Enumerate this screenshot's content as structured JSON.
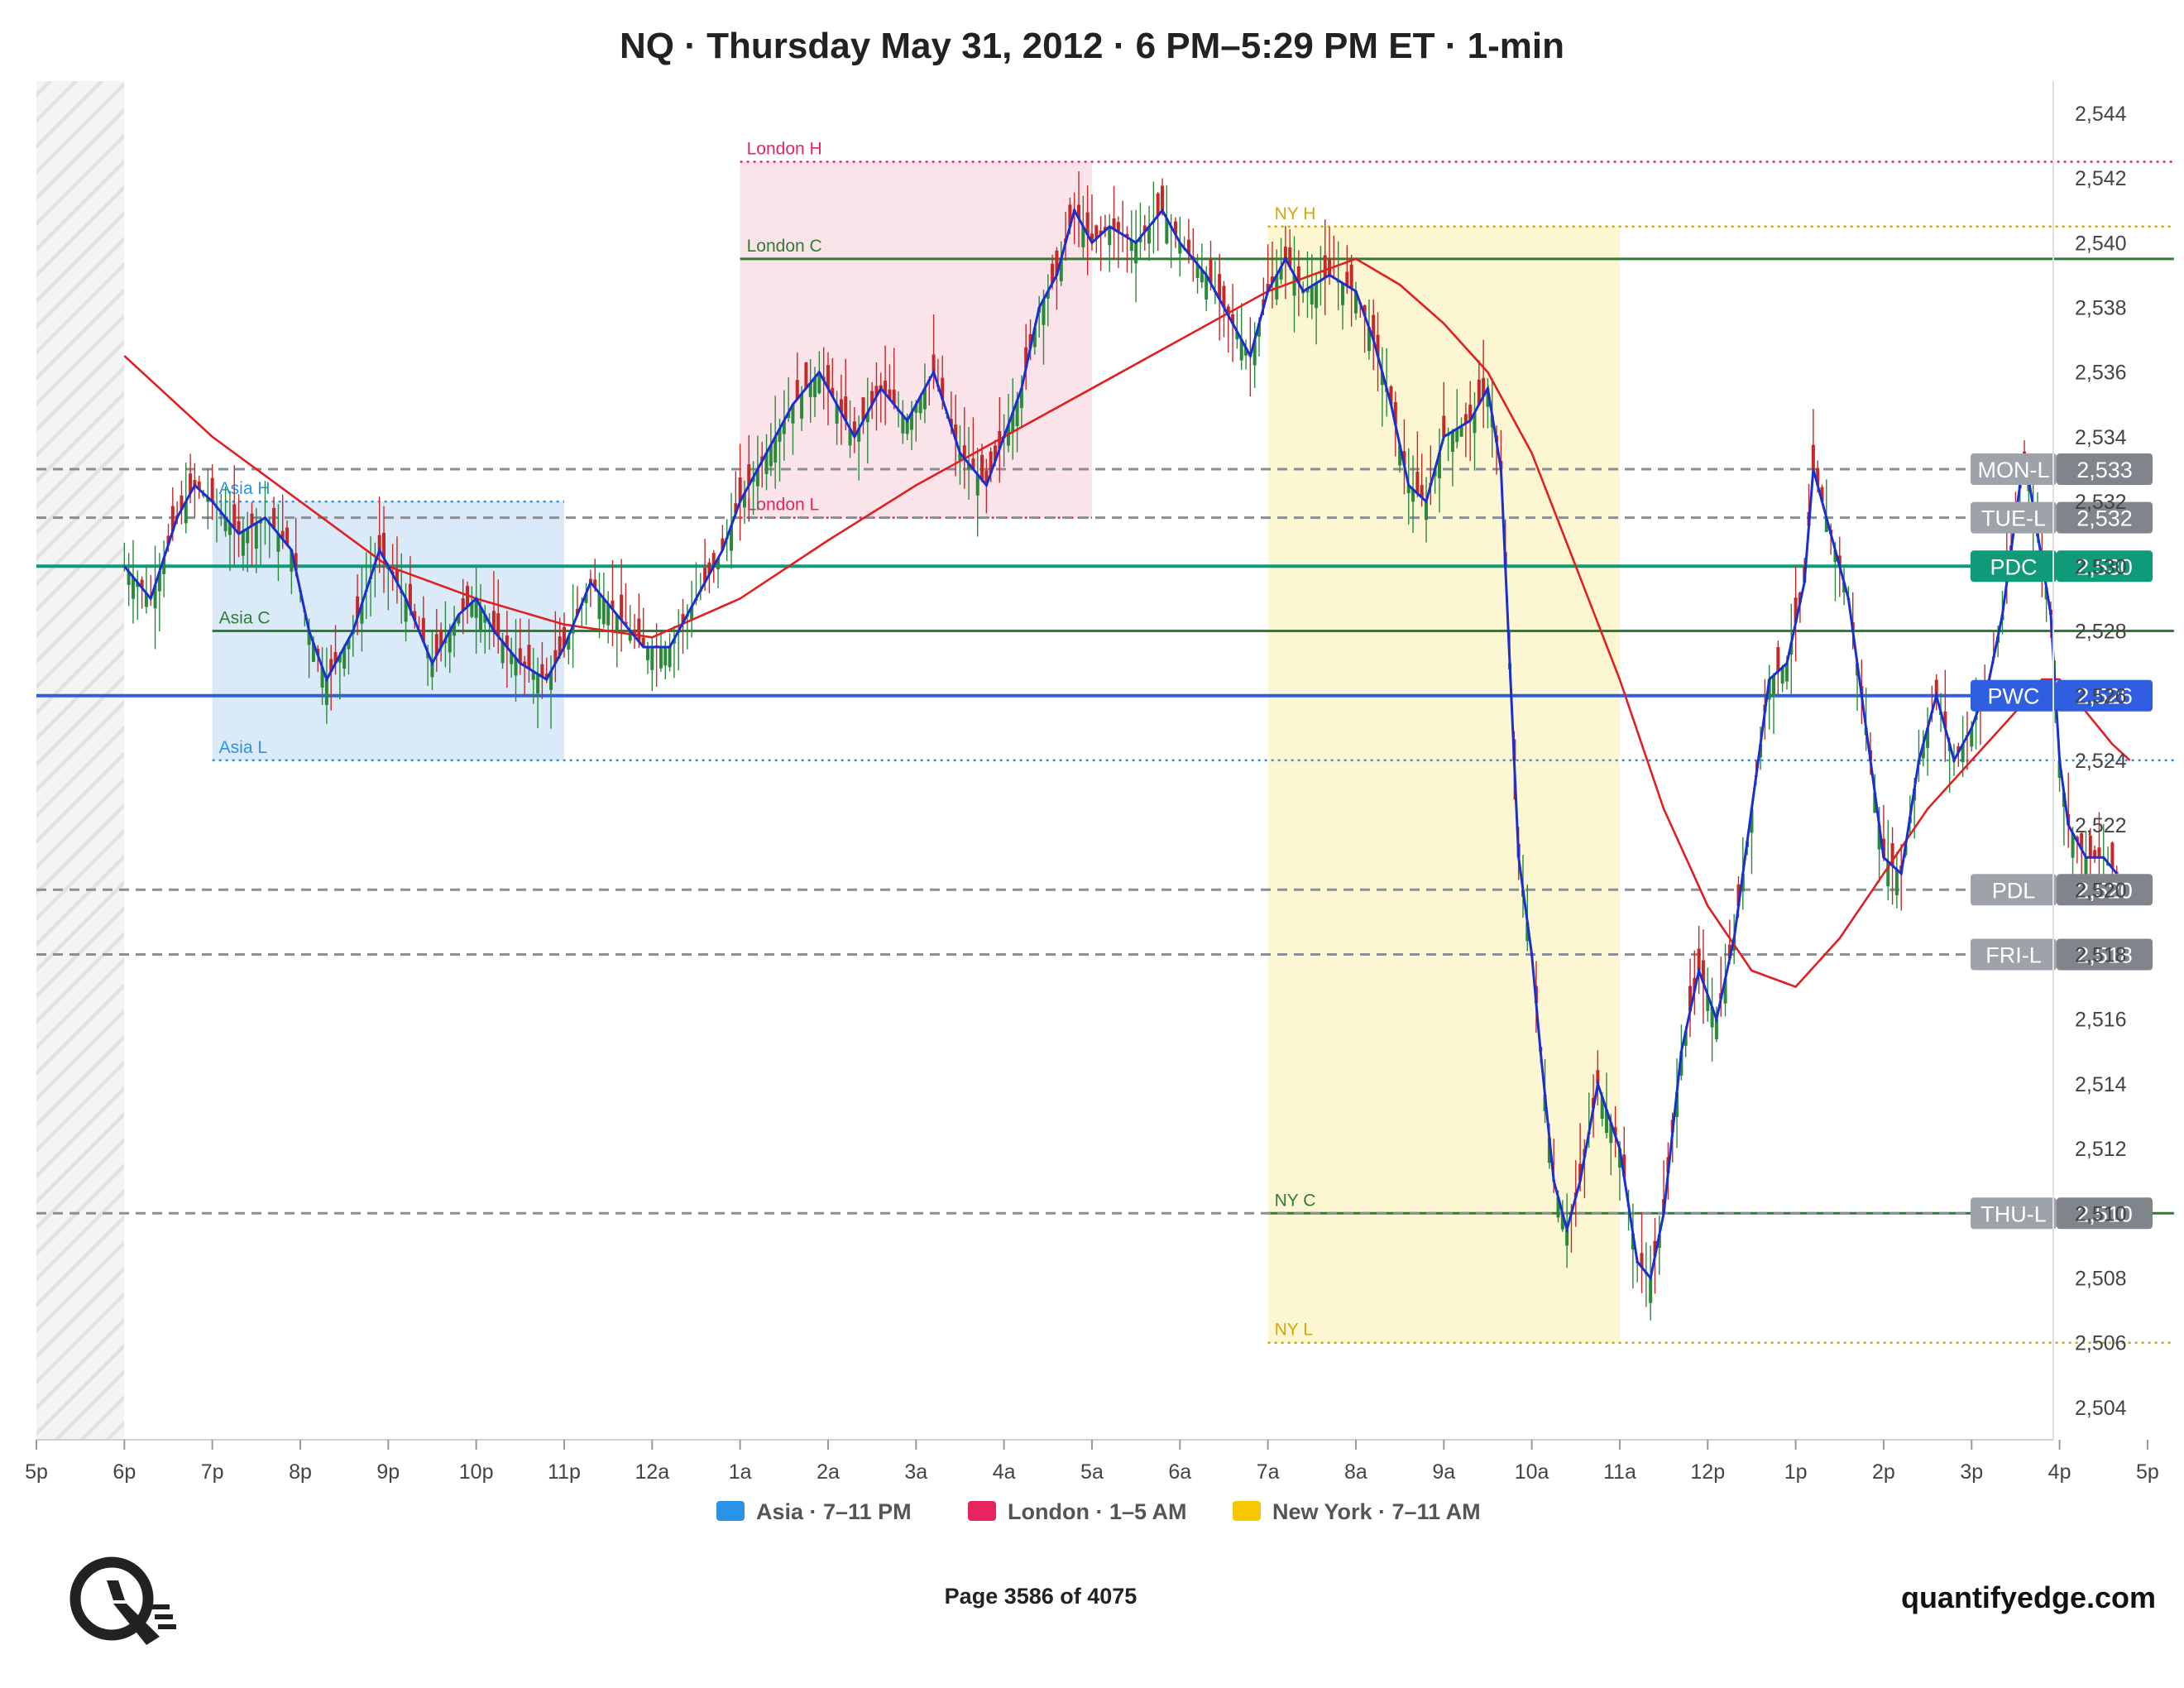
{
  "title": "NQ · Thursday May 31, 2012 · 6 PM–5:29 PM ET · 1-min",
  "footer": {
    "page": "Page 3586 of 4075",
    "brand": "quantifyedge.com",
    "logo_icon": "q-magnifier-logo-icon"
  },
  "legend": [
    {
      "label": "Asia · 7–11 PM",
      "color": "#2a93e8"
    },
    {
      "label": "London · 1–5 AM",
      "color": "#e8245f"
    },
    {
      "label": "New York · 7–11 AM",
      "color": "#f5c800"
    }
  ],
  "chart_data": {
    "type": "candlestick",
    "x_ticks": [
      "5p",
      "6p",
      "7p",
      "8p",
      "9p",
      "10p",
      "11p",
      "12a",
      "1a",
      "2a",
      "3a",
      "4a",
      "5a",
      "6a",
      "7a",
      "8a",
      "9a",
      "10a",
      "11a",
      "12p",
      "1p",
      "2p",
      "3p",
      "4p",
      "5p"
    ],
    "x_tick_hours": [
      17,
      18,
      19,
      20,
      21,
      22,
      23,
      24,
      25,
      26,
      27,
      28,
      29,
      30,
      31,
      32,
      33,
      34,
      35,
      36,
      37,
      38,
      39,
      40,
      41
    ],
    "x_range": [
      17,
      41.7
    ],
    "ylim": [
      2503,
      2545
    ],
    "y_ticks": [
      2504,
      2506,
      2508,
      2510,
      2512,
      2514,
      2516,
      2518,
      2520,
      2522,
      2524,
      2526,
      2528,
      2530,
      2532,
      2534,
      2536,
      2538,
      2540,
      2542,
      2544
    ],
    "y_tick_labels": [
      "2,504",
      "2,506",
      "2,508",
      "2,510",
      "2,512",
      "2,514",
      "2,516",
      "2,518",
      "2,520",
      "2,522",
      "2,524",
      "2,526",
      "2,528",
      "2,530",
      "2,532",
      "2,534",
      "2,536",
      "2,538",
      "2,540",
      "2,542",
      "2,544"
    ],
    "sessions": [
      {
        "name": "Asia",
        "start": 19,
        "end": 23,
        "color": "#2a93e8"
      },
      {
        "name": "London",
        "start": 25,
        "end": 29,
        "color": "#e8245f"
      },
      {
        "name": "New York",
        "start": 31,
        "end": 35,
        "color": "#f5c800"
      }
    ],
    "session_levels": [
      {
        "label": "Asia H",
        "value": 2532.0,
        "start": 19,
        "end": 23,
        "style": "dotted",
        "color": "#2a93e8"
      },
      {
        "label": "Asia C",
        "value": 2528.0,
        "start": 19,
        "end": 41.3,
        "style": "solid",
        "color": "#2e7d32"
      },
      {
        "label": "Asia L",
        "value": 2524.0,
        "start": 19,
        "end": 41.3,
        "style": "dotted",
        "color": "#2a93e8"
      },
      {
        "label": "London H",
        "value": 2542.5,
        "start": 25,
        "end": 41.3,
        "style": "dotted",
        "color": "#e8245f"
      },
      {
        "label": "London C",
        "value": 2539.5,
        "start": 25,
        "end": 41.3,
        "style": "solid",
        "color": "#2e7d32"
      },
      {
        "label": "London L",
        "value": 2531.5,
        "start": 25,
        "end": 29,
        "style": "dotted",
        "color": "#e8245f"
      },
      {
        "label": "NY H",
        "value": 2540.5,
        "start": 31,
        "end": 41.3,
        "style": "dotted",
        "color": "#d4a800"
      },
      {
        "label": "NY C",
        "value": 2510.0,
        "start": 31,
        "end": 41.3,
        "style": "solid",
        "color": "#2e7d32"
      },
      {
        "label": "NY L",
        "value": 2506.0,
        "start": 31,
        "end": 41.3,
        "style": "dotted",
        "color": "#d4a800"
      }
    ],
    "reference_levels": [
      {
        "label": "MON-L",
        "value": 2533.0,
        "value_label": "2,533",
        "style": "dashed",
        "color": "#8a8f96"
      },
      {
        "label": "TUE-L",
        "value": 2531.5,
        "value_label": "2,532",
        "style": "dashed",
        "color": "#8a8f96"
      },
      {
        "label": "PDC",
        "value": 2530.0,
        "value_label": "2,530",
        "style": "solid",
        "color": "#0f9a7a"
      },
      {
        "label": "PWC",
        "value": 2526.0,
        "value_label": "2,526",
        "style": "solid",
        "color": "#2f5fe0"
      },
      {
        "label": "PDL",
        "value": 2520.0,
        "value_label": "2,520",
        "style": "dashed",
        "color": "#8a8f96"
      },
      {
        "label": "FRI-L",
        "value": 2518.0,
        "value_label": "2,518",
        "style": "dashed",
        "color": "#8a8f96"
      },
      {
        "label": "THU-L",
        "value": 2510.0,
        "value_label": "2,510",
        "style": "dashed",
        "color": "#8a8f96"
      }
    ],
    "price_path": [
      [
        18.0,
        2530.0
      ],
      [
        18.3,
        2529.0
      ],
      [
        18.6,
        2531.5
      ],
      [
        18.8,
        2532.5
      ],
      [
        19.0,
        2532.0
      ],
      [
        19.3,
        2531.0
      ],
      [
        19.6,
        2531.5
      ],
      [
        19.9,
        2530.5
      ],
      [
        20.1,
        2528.0
      ],
      [
        20.3,
        2526.5
      ],
      [
        20.6,
        2528.0
      ],
      [
        20.9,
        2530.5
      ],
      [
        21.2,
        2529.0
      ],
      [
        21.5,
        2527.0
      ],
      [
        21.8,
        2528.5
      ],
      [
        22.0,
        2529.0
      ],
      [
        22.2,
        2528.0
      ],
      [
        22.5,
        2527.0
      ],
      [
        22.8,
        2526.5
      ],
      [
        23.0,
        2527.5
      ],
      [
        23.3,
        2529.5
      ],
      [
        23.6,
        2528.5
      ],
      [
        23.9,
        2527.5
      ],
      [
        24.2,
        2527.5
      ],
      [
        24.5,
        2529.0
      ],
      [
        24.8,
        2530.5
      ],
      [
        25.0,
        2532.0
      ],
      [
        25.3,
        2533.5
      ],
      [
        25.6,
        2535.0
      ],
      [
        25.9,
        2536.0
      ],
      [
        26.1,
        2535.0
      ],
      [
        26.3,
        2534.0
      ],
      [
        26.6,
        2535.5
      ],
      [
        26.9,
        2534.5
      ],
      [
        27.2,
        2536.0
      ],
      [
        27.5,
        2533.5
      ],
      [
        27.8,
        2532.5
      ],
      [
        28.0,
        2534.0
      ],
      [
        28.2,
        2535.5
      ],
      [
        28.4,
        2538.0
      ],
      [
        28.6,
        2539.0
      ],
      [
        28.8,
        2541.0
      ],
      [
        29.0,
        2540.0
      ],
      [
        29.2,
        2540.5
      ],
      [
        29.5,
        2540.0
      ],
      [
        29.8,
        2541.0
      ],
      [
        30.0,
        2540.0
      ],
      [
        30.3,
        2539.0
      ],
      [
        30.6,
        2537.5
      ],
      [
        30.8,
        2536.5
      ],
      [
        31.0,
        2538.5
      ],
      [
        31.2,
        2539.5
      ],
      [
        31.4,
        2538.5
      ],
      [
        31.7,
        2539.0
      ],
      [
        32.0,
        2538.5
      ],
      [
        32.2,
        2537.0
      ],
      [
        32.4,
        2535.0
      ],
      [
        32.6,
        2532.5
      ],
      [
        32.8,
        2532.0
      ],
      [
        33.0,
        2534.0
      ],
      [
        33.3,
        2534.5
      ],
      [
        33.5,
        2535.5
      ],
      [
        33.65,
        2533.0
      ],
      [
        33.75,
        2527.0
      ],
      [
        33.85,
        2521.0
      ],
      [
        34.0,
        2518.0
      ],
      [
        34.1,
        2515.0
      ],
      [
        34.25,
        2511.0
      ],
      [
        34.4,
        2509.5
      ],
      [
        34.55,
        2511.0
      ],
      [
        34.75,
        2514.0
      ],
      [
        35.0,
        2512.0
      ],
      [
        35.2,
        2508.5
      ],
      [
        35.35,
        2508.0
      ],
      [
        35.5,
        2510.0
      ],
      [
        35.7,
        2515.0
      ],
      [
        35.9,
        2517.5
      ],
      [
        36.1,
        2516.0
      ],
      [
        36.3,
        2518.5
      ],
      [
        36.5,
        2522.5
      ],
      [
        36.7,
        2526.5
      ],
      [
        36.9,
        2527.0
      ],
      [
        37.1,
        2529.5
      ],
      [
        37.2,
        2533.0
      ],
      [
        37.4,
        2531.0
      ],
      [
        37.6,
        2529.0
      ],
      [
        37.8,
        2525.0
      ],
      [
        38.0,
        2521.0
      ],
      [
        38.2,
        2520.5
      ],
      [
        38.4,
        2524.0
      ],
      [
        38.6,
        2526.0
      ],
      [
        38.8,
        2524.0
      ],
      [
        39.0,
        2525.0
      ],
      [
        39.2,
        2526.5
      ],
      [
        39.35,
        2528.5
      ],
      [
        39.5,
        2531.5
      ],
      [
        39.6,
        2533.5
      ],
      [
        39.75,
        2531.0
      ],
      [
        39.9,
        2528.5
      ],
      [
        40.0,
        2524.0
      ],
      [
        40.1,
        2522.0
      ],
      [
        40.3,
        2521.0
      ],
      [
        40.5,
        2521.0
      ],
      [
        40.65,
        2520.5
      ]
    ],
    "ema_path": [
      [
        18.0,
        2536.5
      ],
      [
        19.0,
        2534.0
      ],
      [
        20.0,
        2532.0
      ],
      [
        21.0,
        2530.0
      ],
      [
        22.0,
        2529.0
      ],
      [
        23.0,
        2528.2
      ],
      [
        24.0,
        2527.8
      ],
      [
        25.0,
        2529.0
      ],
      [
        26.0,
        2530.8
      ],
      [
        27.0,
        2532.5
      ],
      [
        28.0,
        2534.0
      ],
      [
        29.0,
        2535.5
      ],
      [
        30.0,
        2537.0
      ],
      [
        31.0,
        2538.5
      ],
      [
        32.0,
        2539.5
      ],
      [
        32.5,
        2538.7
      ],
      [
        33.0,
        2537.5
      ],
      [
        33.5,
        2536.0
      ],
      [
        34.0,
        2533.5
      ],
      [
        34.5,
        2530.0
      ],
      [
        35.0,
        2526.5
      ],
      [
        35.5,
        2522.5
      ],
      [
        36.0,
        2519.5
      ],
      [
        36.5,
        2517.5
      ],
      [
        37.0,
        2517.0
      ],
      [
        37.5,
        2518.5
      ],
      [
        38.0,
        2520.5
      ],
      [
        38.5,
        2522.5
      ],
      [
        39.0,
        2524.0
      ],
      [
        39.5,
        2525.5
      ],
      [
        39.8,
        2526.5
      ],
      [
        40.0,
        2526.5
      ],
      [
        40.3,
        2525.5
      ],
      [
        40.6,
        2524.5
      ],
      [
        40.8,
        2524.0
      ]
    ]
  }
}
